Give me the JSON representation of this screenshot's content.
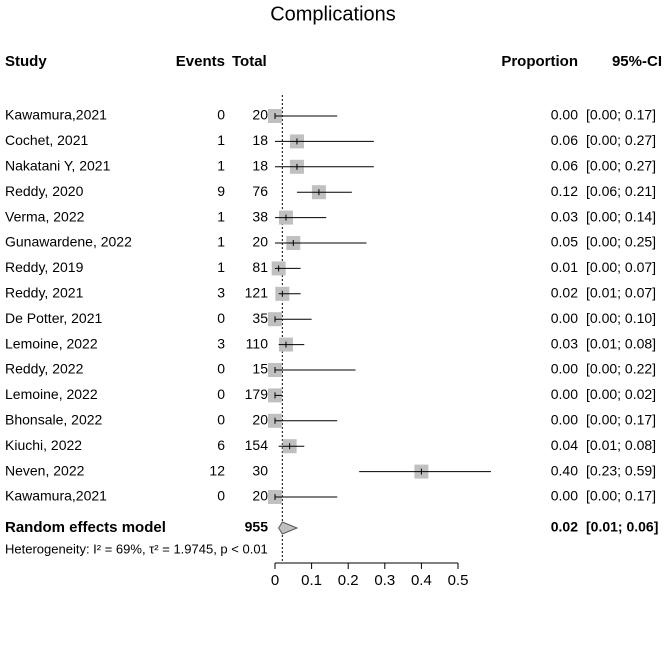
{
  "chart_data": {
    "type": "forest",
    "title": "Complications",
    "columns": {
      "study": "Study",
      "events": "Events",
      "total": "Total",
      "proportion": "Proportion",
      "ci": "95%-CI"
    },
    "studies": [
      "Kawamura,2021",
      "Cochet, 2021",
      "Nakatani Y, 2021",
      "Reddy, 2020",
      "Verma, 2022",
      "Gunawardene, 2022",
      "Reddy, 2019",
      "Reddy, 2021",
      "De Potter, 2021",
      "Lemoine, 2022",
      "Reddy, 2022",
      "Lemoine, 2022",
      "Bhonsale, 2022",
      "Kiuchi, 2022",
      "Neven, 2022",
      "Kawamura,2021"
    ],
    "events": [
      0,
      1,
      1,
      9,
      1,
      1,
      1,
      3,
      0,
      3,
      0,
      0,
      0,
      6,
      12,
      0
    ],
    "totals": [
      20,
      18,
      18,
      76,
      38,
      20,
      81,
      121,
      35,
      110,
      15,
      179,
      20,
      154,
      30,
      20
    ],
    "values": [
      0,
      0.06,
      0.06,
      0.12,
      0.03,
      0.05,
      0.01,
      0.02,
      0,
      0.03,
      0,
      0,
      0,
      0.04,
      0.4,
      0
    ],
    "value_labels": [
      "0.00",
      "0.06",
      "0.06",
      "0.12",
      "0.03",
      "0.05",
      "0.01",
      "0.02",
      "0.00",
      "0.03",
      "0.00",
      "0.00",
      "0.00",
      "0.04",
      "0.40",
      "0.00"
    ],
    "ci_lower": [
      0,
      0,
      0,
      0.06,
      0,
      0,
      0,
      0.01,
      0,
      0.01,
      0,
      0,
      0,
      0.01,
      0.23,
      0
    ],
    "ci_upper": [
      0.17,
      0.27,
      0.27,
      0.21,
      0.14,
      0.25,
      0.07,
      0.07,
      0.1,
      0.08,
      0.22,
      0.02,
      0.17,
      0.08,
      0.59,
      0.17
    ],
    "ci_labels": [
      "[0.00; 0.17]",
      "[0.00; 0.27]",
      "[0.00; 0.27]",
      "[0.06; 0.21]",
      "[0.00; 0.14]",
      "[0.00; 0.25]",
      "[0.00; 0.07]",
      "[0.01; 0.07]",
      "[0.00; 0.10]",
      "[0.01; 0.08]",
      "[0.00; 0.22]",
      "[0.00; 0.02]",
      "[0.00; 0.17]",
      "[0.01; 0.08]",
      "[0.23; 0.59]",
      "[0.00; 0.17]"
    ],
    "summary": {
      "name": "Random effects model",
      "total": 955,
      "value": 0.02,
      "value_label": "0.02",
      "ci_lower": 0.01,
      "ci_upper": 0.06,
      "ci_label": "[0.01; 0.06]"
    },
    "heterogeneity": "Heterogeneity: I² = 69%, τ² = 1.9745, p < 0.01",
    "xlim": [
      0,
      0.5
    ],
    "xticks": [
      0,
      0.1,
      0.2,
      0.3,
      0.4,
      0.5
    ],
    "color": "#c0c0c0"
  }
}
